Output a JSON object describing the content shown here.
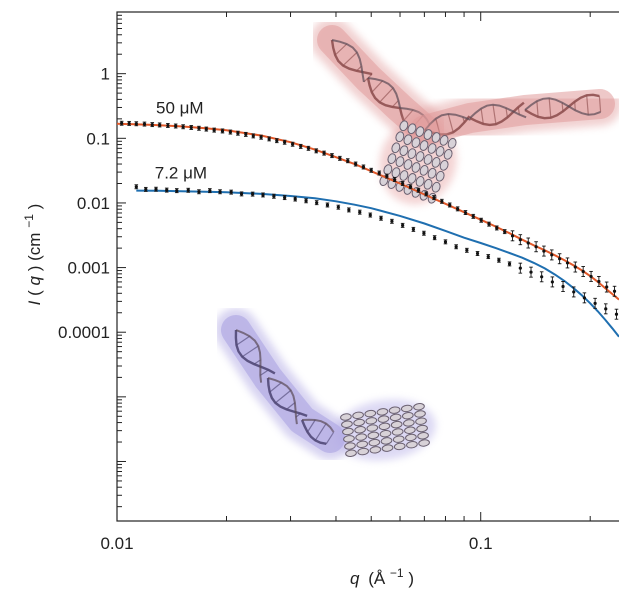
{
  "chart_data": {
    "type": "scatter",
    "xscale": "log",
    "yscale": "log",
    "xlim": [
      0.01,
      0.24
    ],
    "ylim": [
      1.2e-07,
      9
    ],
    "xticks": [
      {
        "value": 0.01,
        "label": "0.01"
      },
      {
        "value": 0.1,
        "label": "0.1"
      }
    ],
    "yticks": [
      {
        "value": 1,
        "label": "1"
      },
      {
        "value": 0.1,
        "label": "0.1"
      },
      {
        "value": 0.01,
        "label": "0.01"
      },
      {
        "value": 0.001,
        "label": "0.001"
      },
      {
        "value": 0.0001,
        "label": "0.0001"
      }
    ],
    "xlabel": {
      "var": "q",
      "unit": "(Å",
      "exp": "−1",
      "close": ")"
    },
    "ylabel": {
      "var": "I",
      "open": "(",
      "var2": "q",
      "mid": ") (cm",
      "exp": "−1",
      "close": ")"
    },
    "series": [
      {
        "name": "50 µM",
        "label": "50 μM",
        "points": [
          [
            0.0103,
            0.171
          ],
          [
            0.0108,
            0.17
          ],
          [
            0.0113,
            0.168
          ],
          [
            0.0119,
            0.166
          ],
          [
            0.0125,
            0.163
          ],
          [
            0.0131,
            0.161
          ],
          [
            0.0138,
            0.158
          ],
          [
            0.0145,
            0.155
          ],
          [
            0.0152,
            0.151
          ],
          [
            0.016,
            0.147
          ],
          [
            0.0168,
            0.143
          ],
          [
            0.0176,
            0.139
          ],
          [
            0.0185,
            0.134
          ],
          [
            0.0195,
            0.13
          ],
          [
            0.0205,
            0.125
          ],
          [
            0.0215,
            0.12
          ],
          [
            0.0226,
            0.115
          ],
          [
            0.0237,
            0.109
          ],
          [
            0.0249,
            0.104
          ],
          [
            0.0262,
            0.098
          ],
          [
            0.0275,
            0.092
          ],
          [
            0.0289,
            0.087
          ],
          [
            0.0304,
            0.081
          ],
          [
            0.032,
            0.075
          ],
          [
            0.0336,
            0.07
          ],
          [
            0.0353,
            0.064
          ],
          [
            0.0371,
            0.059
          ],
          [
            0.039,
            0.054
          ],
          [
            0.041,
            0.049
          ],
          [
            0.0431,
            0.045
          ],
          [
            0.0453,
            0.04
          ],
          [
            0.0476,
            0.036
          ],
          [
            0.05,
            0.032
          ],
          [
            0.0526,
            0.029
          ],
          [
            0.0552,
            0.026
          ],
          [
            0.058,
            0.023
          ],
          [
            0.061,
            0.02
          ],
          [
            0.0641,
            0.0178
          ],
          [
            0.0674,
            0.0157
          ],
          [
            0.0708,
            0.0138
          ],
          [
            0.0744,
            0.0121
          ],
          [
            0.0782,
            0.0106
          ],
          [
            0.0822,
            0.0093
          ],
          [
            0.0864,
            0.0081
          ],
          [
            0.0908,
            0.0071
          ],
          [
            0.0954,
            0.0062
          ],
          [
            0.1003,
            0.0054
          ],
          [
            0.1054,
            0.0047
          ],
          [
            0.1107,
            0.0041
          ],
          [
            0.1164,
            0.0036
          ],
          [
            0.1223,
            0.0031
          ],
          [
            0.1285,
            0.0027
          ],
          [
            0.1351,
            0.0024
          ],
          [
            0.142,
            0.0021
          ],
          [
            0.1492,
            0.0018
          ],
          [
            0.1568,
            0.00157
          ],
          [
            0.1648,
            0.00137
          ],
          [
            0.1732,
            0.00118
          ],
          [
            0.182,
            0.00102
          ],
          [
            0.1913,
            0.00087
          ],
          [
            0.2011,
            0.00073
          ],
          [
            0.2113,
            0.00061
          ],
          [
            0.222,
            0.0005
          ],
          [
            0.2333,
            0.00043
          ]
        ],
        "fit": [
          [
            0.01,
            0.168
          ],
          [
            0.0125,
            0.161
          ],
          [
            0.015,
            0.153
          ],
          [
            0.0175,
            0.143
          ],
          [
            0.02,
            0.133
          ],
          [
            0.025,
            0.11
          ],
          [
            0.03,
            0.087
          ],
          [
            0.035,
            0.067
          ],
          [
            0.04,
            0.051
          ],
          [
            0.045,
            0.04
          ],
          [
            0.05,
            0.031
          ],
          [
            0.06,
            0.02
          ],
          [
            0.07,
            0.0135
          ],
          [
            0.08,
            0.0097
          ],
          [
            0.09,
            0.0072
          ],
          [
            0.1,
            0.0055
          ],
          [
            0.11,
            0.0043
          ],
          [
            0.12,
            0.0034
          ],
          [
            0.13,
            0.0027
          ],
          [
            0.14,
            0.0022
          ],
          [
            0.15,
            0.00185
          ],
          [
            0.16,
            0.00155
          ],
          [
            0.17,
            0.0013
          ],
          [
            0.18,
            0.00108
          ],
          [
            0.19,
            0.0009
          ],
          [
            0.2,
            0.00074
          ],
          [
            0.21,
            0.0006
          ],
          [
            0.22,
            0.00048
          ],
          [
            0.23,
            0.00039
          ],
          [
            0.24,
            0.00032
          ]
        ],
        "fit_color": "#e2592a"
      },
      {
        "name": "7.2 µM",
        "label": "7.2 μM",
        "points": [
          [
            0.0113,
            0.0178
          ],
          [
            0.012,
            0.0162
          ],
          [
            0.0128,
            0.0163
          ],
          [
            0.0137,
            0.0158
          ],
          [
            0.0146,
            0.0155
          ],
          [
            0.0157,
            0.0157
          ],
          [
            0.0168,
            0.0149
          ],
          [
            0.018,
            0.0155
          ],
          [
            0.0192,
            0.0149
          ],
          [
            0.0206,
            0.0147
          ],
          [
            0.022,
            0.0138
          ],
          [
            0.0236,
            0.0137
          ],
          [
            0.0252,
            0.0133
          ],
          [
            0.027,
            0.0127
          ],
          [
            0.0289,
            0.0121
          ],
          [
            0.0309,
            0.0115
          ],
          [
            0.0331,
            0.0108
          ],
          [
            0.0354,
            0.0101
          ],
          [
            0.0379,
            0.0093
          ],
          [
            0.0406,
            0.0086
          ],
          [
            0.0434,
            0.0078
          ],
          [
            0.0465,
            0.0072
          ],
          [
            0.0497,
            0.0065
          ],
          [
            0.0532,
            0.0058
          ],
          [
            0.057,
            0.0052
          ],
          [
            0.061,
            0.0045
          ],
          [
            0.0653,
            0.0039
          ],
          [
            0.0698,
            0.0034
          ],
          [
            0.0747,
            0.0029
          ],
          [
            0.08,
            0.0025
          ],
          [
            0.0856,
            0.0021
          ],
          [
            0.0916,
            0.00185
          ],
          [
            0.098,
            0.00165
          ],
          [
            0.1049,
            0.00148
          ],
          [
            0.1122,
            0.0013
          ],
          [
            0.12,
            0.00114
          ],
          [
            0.1285,
            0.00098
          ],
          [
            0.1375,
            0.00085
          ],
          [
            0.1471,
            0.00072
          ],
          [
            0.1574,
            0.0006
          ],
          [
            0.1684,
            0.00051
          ],
          [
            0.1802,
            0.00042
          ],
          [
            0.1928,
            0.00034
          ],
          [
            0.2063,
            0.00028
          ],
          [
            0.2207,
            0.00023
          ],
          [
            0.2362,
            0.00019
          ]
        ],
        "fit": [
          [
            0.0113,
            0.0155
          ],
          [
            0.013,
            0.0154
          ],
          [
            0.015,
            0.0152
          ],
          [
            0.0175,
            0.0149
          ],
          [
            0.02,
            0.0146
          ],
          [
            0.025,
            0.0138
          ],
          [
            0.03,
            0.0128
          ],
          [
            0.035,
            0.0118
          ],
          [
            0.04,
            0.0106
          ],
          [
            0.045,
            0.0094
          ],
          [
            0.05,
            0.0083
          ],
          [
            0.06,
            0.0063
          ],
          [
            0.07,
            0.0048
          ],
          [
            0.08,
            0.0037
          ],
          [
            0.09,
            0.0029
          ],
          [
            0.1,
            0.0024
          ],
          [
            0.11,
            0.002
          ],
          [
            0.12,
            0.00168
          ],
          [
            0.13,
            0.00142
          ],
          [
            0.14,
            0.00118
          ],
          [
            0.15,
            0.00097
          ],
          [
            0.16,
            0.00078
          ],
          [
            0.17,
            0.00062
          ],
          [
            0.18,
            0.00048
          ],
          [
            0.19,
            0.00037
          ],
          [
            0.2,
            0.00028
          ],
          [
            0.21,
            0.00021
          ],
          [
            0.22,
            0.000155
          ],
          [
            0.23,
            0.000115
          ],
          [
            0.24,
            8.5e-05
          ]
        ],
        "fit_color": "#1f6fb0"
      }
    ],
    "annotations": [
      {
        "text": "50 μM",
        "x": 0.0128,
        "y": 0.24
      },
      {
        "text": "7.2 μM",
        "x": 0.0127,
        "y": 0.024
      }
    ],
    "grid": false,
    "legend": "none"
  },
  "insets": [
    {
      "name": "dna-protein-complex-y-shaped",
      "tint": "#d77c7c"
    },
    {
      "name": "dna-protein-complex-l-shaped",
      "tint": "#8f83cf"
    }
  ]
}
